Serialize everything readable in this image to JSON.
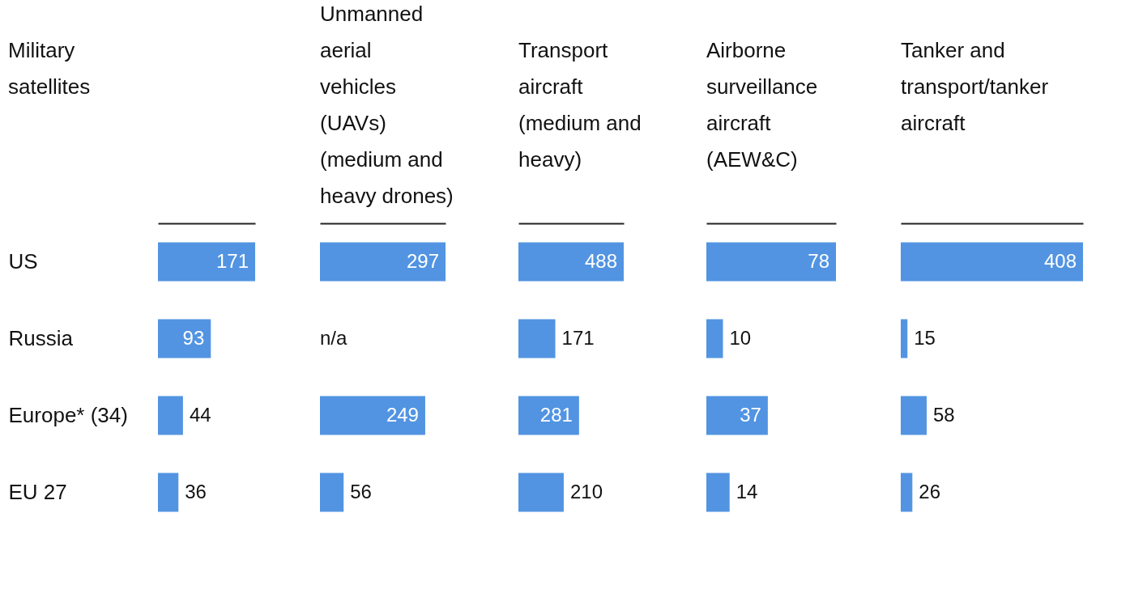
{
  "chart_data": [
    {
      "type": "bar",
      "orientation": "horizontal",
      "title": "Military satellites",
      "categories": [
        "US",
        "Russia",
        "Europe* (34)",
        "EU 27"
      ],
      "values": [
        171,
        93,
        44,
        36
      ],
      "color": "#5294e2",
      "data_labels": true,
      "tick_labels": "y"
    },
    {
      "type": "bar",
      "orientation": "horizontal",
      "title": "Unmanned aerial vehicles (UAVs) (medium and heavy drones)",
      "categories": [
        "US",
        "Russia",
        "Europe* (34)",
        "EU 27"
      ],
      "values": [
        297,
        null,
        249,
        56
      ],
      "value_labels": [
        "297",
        "n/a",
        "249",
        "56"
      ],
      "color": "#5294e2",
      "tick_labels": false
    },
    {
      "type": "bar",
      "orientation": "horizontal",
      "title": "Transport aircraft (medium and heavy)",
      "categories": [
        "US",
        "Russia",
        "Europe* (34)",
        "EU 27"
      ],
      "values": [
        488,
        171,
        281,
        210
      ],
      "color": "#5294e2",
      "data_labels": true,
      "tick_labels": false
    },
    {
      "type": "bar",
      "orientation": "horizontal",
      "title": "Airborne surveillance aircraft (AEW&C)",
      "categories": [
        "US",
        "Russia",
        "Europe* (34)",
        "EU 27"
      ],
      "values": [
        78,
        10,
        37,
        14
      ],
      "color": "#5294e2",
      "data_labels": true,
      "tick_labels": false
    },
    {
      "type": "bar",
      "orientation": "horizontal",
      "title": "Tanker and transport/tanker aircraft",
      "categories": [
        "US",
        "Russia",
        "Europe* (34)",
        "EU 27"
      ],
      "values": [
        408,
        15,
        58,
        26
      ],
      "color": "#5294e2",
      "data_labels": true,
      "tick_labels": false
    }
  ]
}
